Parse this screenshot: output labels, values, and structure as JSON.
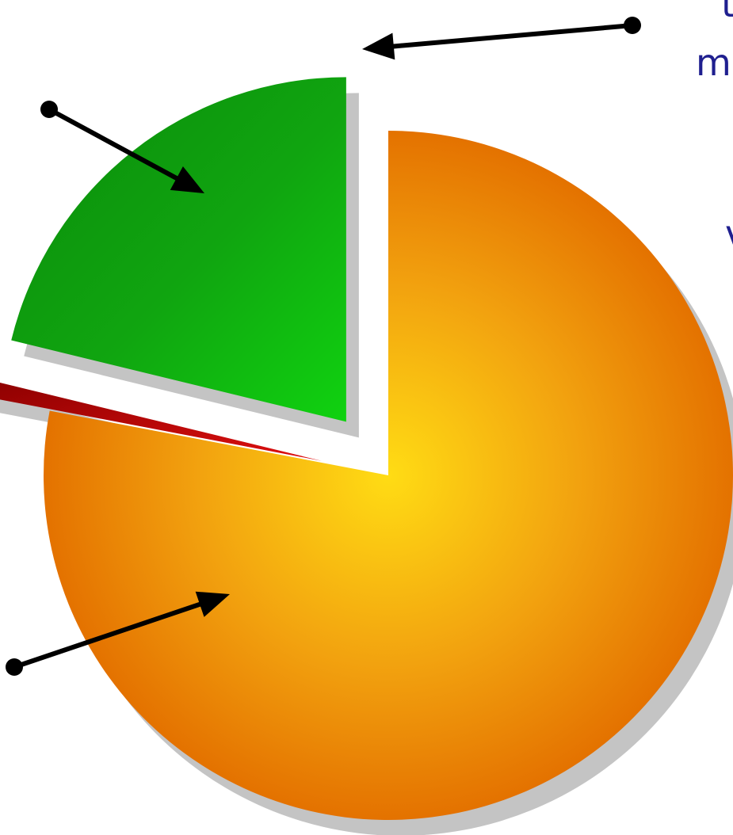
{
  "chart_data": {
    "type": "pie",
    "title": "",
    "slices": [
      {
        "label": "",
        "value": 78.0,
        "color": "#f0a010",
        "exploded": false
      },
      {
        "label": "",
        "value": 0.8,
        "color": "#a50808",
        "exploded": true
      },
      {
        "label": "",
        "value": 21.2,
        "color": "#1aa81a",
        "exploded": true
      }
    ],
    "start_angle_deg": 0,
    "direction": "clockwise",
    "shadow": true
  },
  "cropped_label_fragments": [
    "t",
    "m",
    "v"
  ]
}
